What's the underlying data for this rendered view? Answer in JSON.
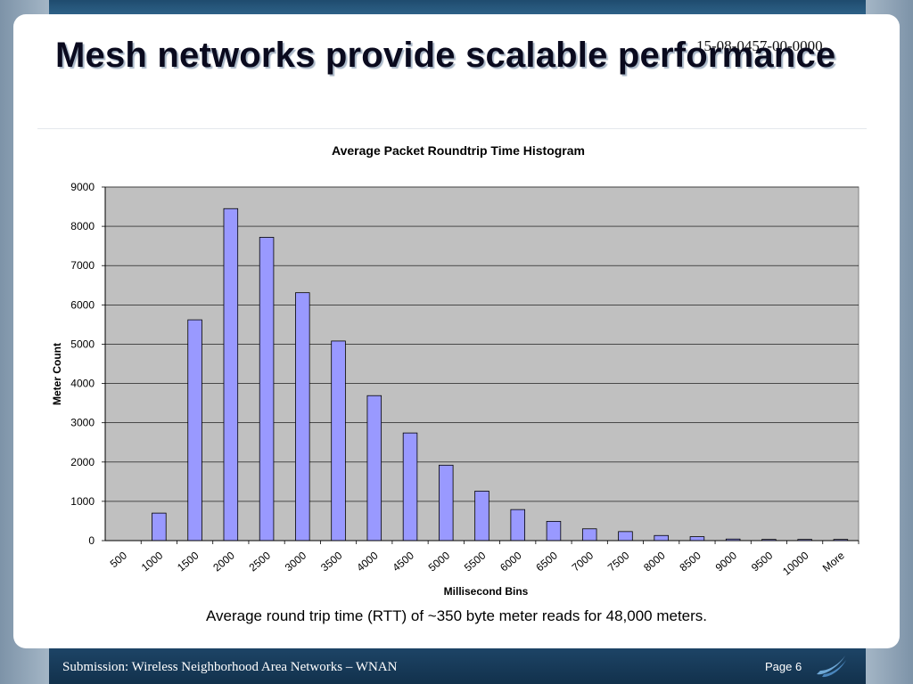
{
  "slide": {
    "doc_number": "15-08-0457-00-0000",
    "title": "Mesh networks provide scalable performance",
    "caption": "Average round trip time (RTT) of ~350 byte meter reads for 48,000 meters.",
    "footer": "Submission: Wireless Neighborhood Area Networks – WNAN",
    "page_label": "Page 6",
    "logo_icon": "swoosh-logo-icon"
  },
  "colors": {
    "bar_fill": "#9999ff",
    "plot_bg": "#c0c0c0",
    "footer_band": "#1d4466"
  },
  "chart_data": {
    "type": "bar",
    "title": "Average Packet Roundtrip Time Histogram",
    "xlabel": "Millisecond Bins",
    "ylabel": "Meter Count",
    "categories": [
      "500",
      "1000",
      "1500",
      "2000",
      "2500",
      "3000",
      "3500",
      "4000",
      "4500",
      "5000",
      "5500",
      "6000",
      "6500",
      "7000",
      "7500",
      "8000",
      "8500",
      "9000",
      "9500",
      "10000",
      "More"
    ],
    "values": [
      0,
      700,
      5620,
      8450,
      7720,
      6310,
      5080,
      3690,
      2740,
      1920,
      1260,
      790,
      490,
      300,
      230,
      130,
      100,
      40,
      30,
      30,
      30
    ],
    "ylim": [
      0,
      9000
    ],
    "yticks": [
      0,
      1000,
      2000,
      3000,
      4000,
      5000,
      6000,
      7000,
      8000,
      9000
    ],
    "grid": true,
    "legend": "none"
  }
}
